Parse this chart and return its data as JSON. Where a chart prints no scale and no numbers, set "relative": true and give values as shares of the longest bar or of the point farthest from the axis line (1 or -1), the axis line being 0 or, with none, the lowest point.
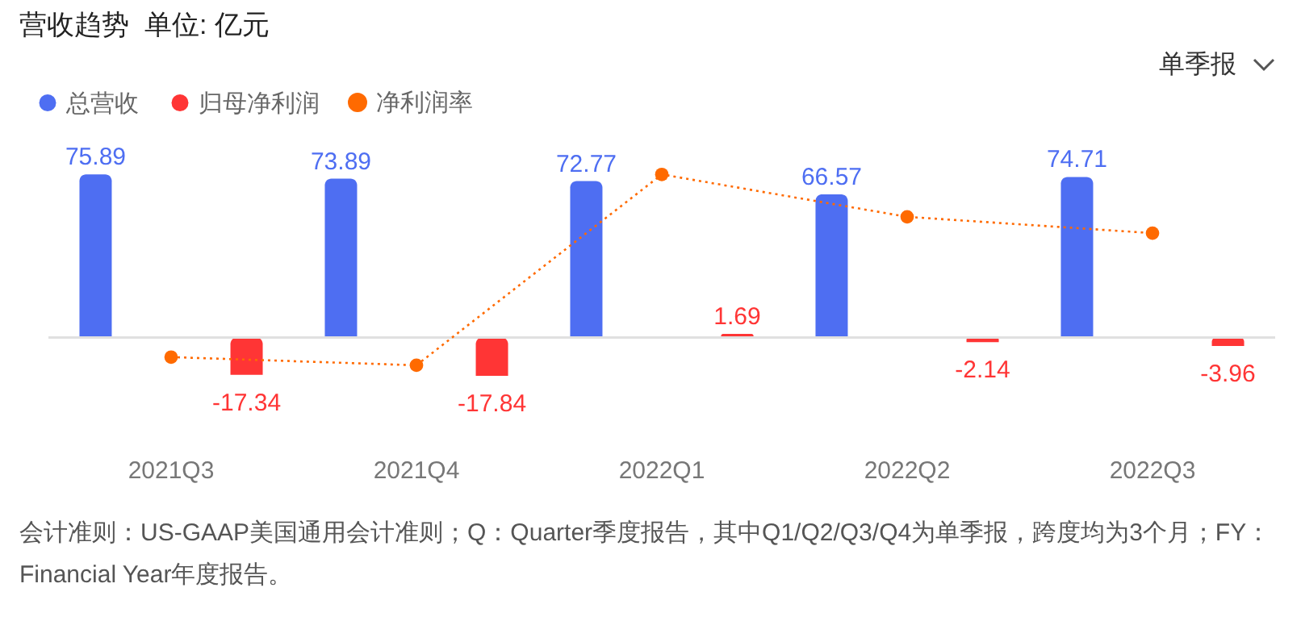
{
  "chart_data": [
    {
      "type": "bar",
      "title": "营收趋势  单位: 亿元",
      "categories": [
        "2021Q3",
        "2021Q4",
        "2022Q1",
        "2022Q2",
        "2022Q3"
      ],
      "series": [
        {
          "name": "总营收",
          "color": "#4e6ef2",
          "values": [
            75.89,
            73.89,
            72.77,
            66.57,
            74.71
          ]
        },
        {
          "name": "归母净利润",
          "color": "#ff3535",
          "values": [
            -17.34,
            -17.84,
            1.69,
            -2.14,
            -3.96
          ]
        }
      ],
      "data_labels": true,
      "legend": "top left",
      "grid": false,
      "tick_labels": "x",
      "annotations": [
        "单季报",
        "会计准则：US-GAAP美国通用会计准则；Q：Quarter季度报告，其中Q1/Q2/Q3/Q4为单季报，跨度均为3个月；FY：Financial Year年度报告。"
      ]
    },
    {
      "type": "line",
      "categories": [
        null,
        null,
        null,
        null,
        null
      ],
      "relative": true,
      "tick_labels": false,
      "legend": "top left",
      "series": [
        {
          "name": "净利润率",
          "color": "#ff6a00",
          "marker": "circle",
          "line_style": "dotted",
          "values": [
            -0.12,
            -0.17,
            1,
            0.74,
            0.64
          ]
        }
      ]
    }
  ]
}
